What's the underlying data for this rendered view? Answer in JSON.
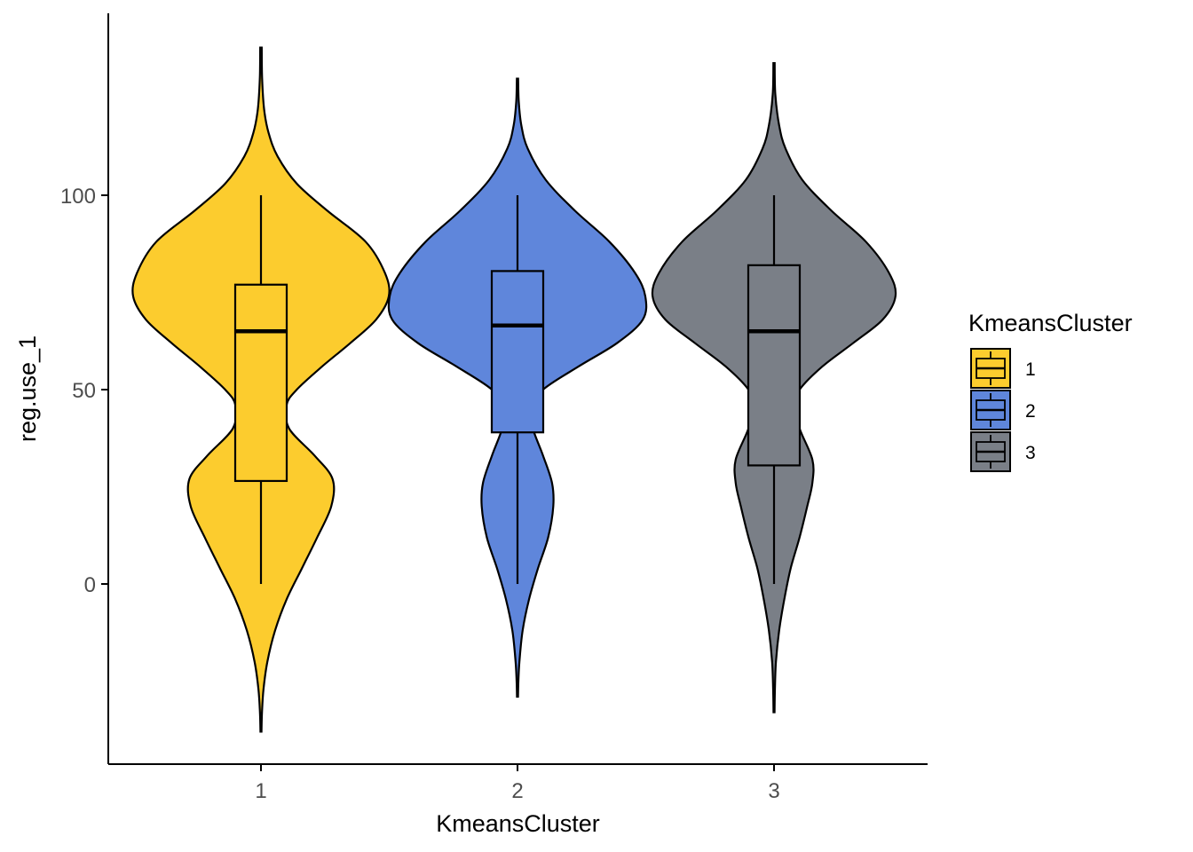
{
  "chart_data": {
    "type": "violin",
    "xlabel": "KmeansCluster",
    "ylabel": "reg.use_1",
    "y_ticks": [
      0,
      50,
      100
    ],
    "ylim": [
      -38,
      147
    ],
    "grid": false,
    "legend": {
      "title": "KmeansCluster",
      "position": "right",
      "entries": [
        {
          "label": "1",
          "color": "#FCCC2E"
        },
        {
          "label": "2",
          "color": "#5F86DB"
        },
        {
          "label": "3",
          "color": "#7A7F87"
        }
      ]
    },
    "categories": [
      "1",
      "2",
      "3"
    ],
    "groups": [
      {
        "category": "1",
        "color": "#FCCC2E",
        "box": {
          "min": 0,
          "q1": 26.5,
          "median": 65,
          "q3": 77,
          "max": 100
        },
        "violin_range": [
          -38,
          138
        ],
        "density": [
          [
            138,
            0.006
          ],
          [
            130,
            0.009
          ],
          [
            122,
            0.025
          ],
          [
            116,
            0.06
          ],
          [
            110,
            0.13
          ],
          [
            103,
            0.28
          ],
          [
            96,
            0.52
          ],
          [
            88,
            0.82
          ],
          [
            80,
            0.97
          ],
          [
            74,
            1.0
          ],
          [
            68,
            0.9
          ],
          [
            62,
            0.7
          ],
          [
            56,
            0.48
          ],
          [
            50,
            0.28
          ],
          [
            46,
            0.2
          ],
          [
            40,
            0.22
          ],
          [
            33,
            0.42
          ],
          [
            27,
            0.56
          ],
          [
            20,
            0.55
          ],
          [
            12,
            0.44
          ],
          [
            4,
            0.32
          ],
          [
            -4,
            0.2
          ],
          [
            -12,
            0.11
          ],
          [
            -20,
            0.05
          ],
          [
            -27,
            0.02
          ],
          [
            -33,
            0.008
          ],
          [
            -38,
            0.004
          ]
        ]
      },
      {
        "category": "2",
        "color": "#5F86DB",
        "box": {
          "min": 0,
          "q1": 39,
          "median": 66.5,
          "q3": 80.5,
          "max": 100
        },
        "violin_range": [
          -29,
          130
        ],
        "density": [
          [
            130,
            0.005
          ],
          [
            124,
            0.01
          ],
          [
            118,
            0.03
          ],
          [
            112,
            0.08
          ],
          [
            104,
            0.22
          ],
          [
            96,
            0.45
          ],
          [
            88,
            0.72
          ],
          [
            80,
            0.92
          ],
          [
            74,
            1.0
          ],
          [
            68,
            0.98
          ],
          [
            62,
            0.78
          ],
          [
            56,
            0.48
          ],
          [
            50,
            0.2
          ],
          [
            45,
            0.1
          ],
          [
            40,
            0.12
          ],
          [
            33,
            0.2
          ],
          [
            26,
            0.27
          ],
          [
            20,
            0.28
          ],
          [
            12,
            0.24
          ],
          [
            4,
            0.16
          ],
          [
            -4,
            0.09
          ],
          [
            -12,
            0.04
          ],
          [
            -20,
            0.015
          ],
          [
            -25,
            0.007
          ],
          [
            -29,
            0.004
          ]
        ]
      },
      {
        "category": "3",
        "color": "#7A7F87",
        "box": {
          "min": 0,
          "q1": 30.5,
          "median": 65,
          "q3": 82,
          "max": 100
        },
        "violin_range": [
          -33,
          134
        ],
        "density": [
          [
            134,
            0.005
          ],
          [
            126,
            0.01
          ],
          [
            118,
            0.04
          ],
          [
            112,
            0.09
          ],
          [
            104,
            0.22
          ],
          [
            96,
            0.45
          ],
          [
            88,
            0.72
          ],
          [
            80,
            0.9
          ],
          [
            74,
            0.95
          ],
          [
            68,
            0.85
          ],
          [
            62,
            0.62
          ],
          [
            56,
            0.38
          ],
          [
            50,
            0.2
          ],
          [
            46,
            0.16
          ],
          [
            40,
            0.2
          ],
          [
            32,
            0.3
          ],
          [
            26,
            0.3
          ],
          [
            20,
            0.26
          ],
          [
            12,
            0.2
          ],
          [
            4,
            0.13
          ],
          [
            -4,
            0.08
          ],
          [
            -12,
            0.04
          ],
          [
            -20,
            0.015
          ],
          [
            -27,
            0.007
          ],
          [
            -33,
            0.004
          ]
        ]
      }
    ]
  }
}
